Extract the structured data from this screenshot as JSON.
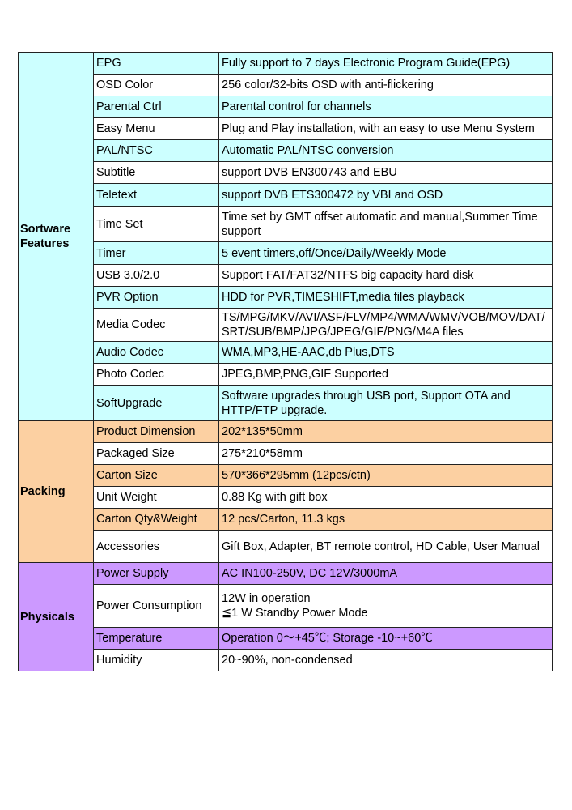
{
  "sections": [
    {
      "title": "Sortware Features",
      "color": "#ccffff",
      "rows": [
        {
          "label": "EPG",
          "value": "Fully support to 7 days Electronic Program Guide(EPG)",
          "shaded": true
        },
        {
          "label": "OSD Color",
          "value": "256 color/32-bits OSD with anti-flickering",
          "shaded": false
        },
        {
          "label": "Parental Ctrl",
          "value": "Parental control for channels",
          "shaded": true
        },
        {
          "label": "Easy Menu",
          "value": "Plug and Play installation, with an easy to use Menu System",
          "shaded": false
        },
        {
          "label": "PAL/NTSC",
          "value": "Automatic PAL/NTSC conversion",
          "shaded": true
        },
        {
          "label": "Subtitle",
          "value": "support DVB EN300743 and EBU",
          "shaded": false
        },
        {
          "label": "Teletext",
          "value": "support DVB ETS300472 by VBI and OSD",
          "shaded": true
        },
        {
          "label": "Time Set",
          "value": "Time set by GMT offset automatic and manual,Summer Time support",
          "shaded": false
        },
        {
          "label": "Timer",
          "value": "5 event timers,off/Once/Daily/Weekly Mode",
          "shaded": true
        },
        {
          "label": "USB 3.0/2.0",
          "value": "Support FAT/FAT32/NTFS big capacity hard disk",
          "shaded": false
        },
        {
          "label": "PVR Option",
          "value": "HDD for PVR,TIMESHIFT,media files playback",
          "shaded": true
        },
        {
          "label": "Media Codec",
          "value": "TS/MPG/MKV/AVI/ASF/FLV/MP4/WMA/WMV/VOB/MOV/DAT/SRT/SUB/BMP/JPG/JPEG/GIF/PNG/M4A files",
          "shaded": false
        },
        {
          "label": "Audio Codec",
          "value": "WMA,MP3,HE-AAC,db Plus,DTS",
          "shaded": true
        },
        {
          "label": "Photo Codec",
          "value": "JPEG,BMP,PNG,GIF Supported",
          "shaded": false
        },
        {
          "label": "SoftUpgrade",
          "value": "Software upgrades through USB port, Support OTA and HTTP/FTP upgrade.",
          "shaded": true
        }
      ]
    },
    {
      "title": "Packing",
      "color": "#fcd0a2",
      "rows": [
        {
          "label": "Product Dimension",
          "value": "202*135*50mm",
          "shaded": true
        },
        {
          "label": "Packaged Size",
          "value": "275*210*58mm",
          "shaded": false
        },
        {
          "label": "Carton Size",
          "value": "570*366*295mm  (12pcs/ctn)",
          "shaded": true
        },
        {
          "label": "Unit Weight",
          "value": "0.88 Kg with gift box",
          "shaded": false
        },
        {
          "label": "Carton Qty&Weight",
          "value": "12 pcs/Carton,  11.3 kgs",
          "shaded": true
        },
        {
          "label": "Accessories",
          "value": " Gift Box, Adapter, BT remote control, HD Cable, User Manual",
          "shaded": false
        }
      ]
    },
    {
      "title": "Physicals",
      "color": "#cc99ff",
      "rows": [
        {
          "label": "Power Supply",
          "value": "AC IN100-250V, DC 12V/3000mA",
          "shaded": true
        },
        {
          "label": "Power Consumption",
          "value": "12W in operation\n≦1 W Standby Power Mode",
          "shaded": false
        },
        {
          "label": "Temperature",
          "value": "Operation 0～+45℃; Storage -10~+60℃",
          "shaded": true
        },
        {
          "label": "Humidity",
          "value": "20~90%, non-condensed",
          "shaded": false
        }
      ]
    }
  ]
}
